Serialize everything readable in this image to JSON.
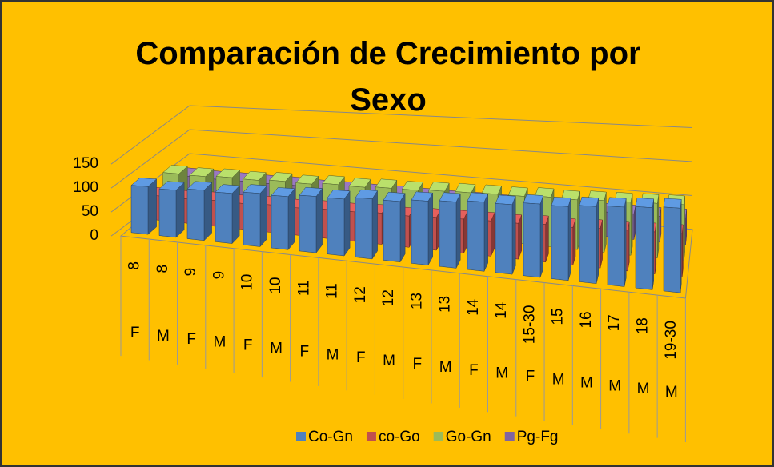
{
  "chart_data": {
    "type": "bar3d",
    "title": "Comparación de Crecimiento por Sexo",
    "categories": [
      "8",
      "8",
      "9",
      "9",
      "10",
      "10",
      "11",
      "11",
      "12",
      "12",
      "13",
      "13",
      "14",
      "14",
      "15-30",
      "15",
      "16",
      "17",
      "18",
      "19-30"
    ],
    "groups": [
      "F",
      "M",
      "F",
      "M",
      "F",
      "M",
      "F",
      "M",
      "F",
      "M",
      "F",
      "M",
      "F",
      "M",
      "F",
      "M",
      "M",
      "M",
      "M",
      "M"
    ],
    "series": [
      {
        "name": "Co-Gn",
        "color": "#4f81bd",
        "values": [
          98,
          95,
          99,
          97,
          101,
          99,
          103,
          102,
          106,
          105,
          109,
          111,
          114,
          113,
          117,
          116,
          119,
          121,
          123,
          125
        ]
      },
      {
        "name": "co-Go",
        "color": "#c0504d",
        "values": [
          50,
          49,
          51,
          50,
          52,
          51,
          53,
          53,
          55,
          54,
          56,
          57,
          58,
          58,
          60,
          59,
          61,
          62,
          63,
          64
        ]
      },
      {
        "name": "Go-Gn",
        "color": "#9bbb59",
        "values": [
          68,
          67,
          69,
          68,
          70,
          69,
          72,
          71,
          73,
          73,
          75,
          76,
          77,
          77,
          79,
          78,
          80,
          81,
          82,
          83
        ]
      },
      {
        "name": "Pg-Fg",
        "color": "#8064a2",
        "values": [
          34,
          33,
          34,
          34,
          35,
          34,
          35,
          35,
          36,
          36,
          36,
          37,
          37,
          37,
          38,
          38,
          38,
          39,
          39,
          40
        ]
      }
    ],
    "ylim": [
      0,
      150
    ],
    "yticks": [
      0,
      50,
      100,
      150
    ],
    "grid": true
  }
}
